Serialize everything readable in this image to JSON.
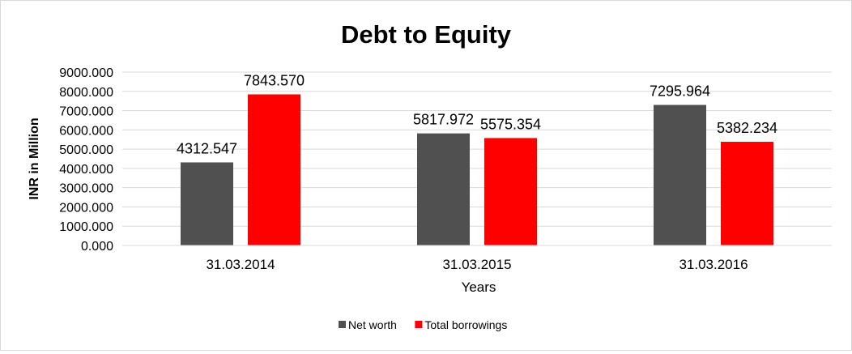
{
  "chart_data": {
    "type": "bar",
    "title": "Debt to Equity",
    "xlabel": "Years",
    "ylabel": "INR in Million",
    "categories": [
      "31.03.2014",
      "31.03.2015",
      "31.03.2016"
    ],
    "series": [
      {
        "name": "Net worth",
        "color": "#505050",
        "values": [
          4312.547,
          5817.972,
          7295.964
        ]
      },
      {
        "name": "Total borrowings",
        "color": "#ff0000",
        "values": [
          7843.57,
          5575.354,
          5382.234
        ]
      }
    ],
    "data_labels": [
      [
        "4312.547",
        "5817.972",
        "7295.964"
      ],
      [
        "7843.570",
        "5575.354",
        "5382.234"
      ]
    ],
    "ylim": [
      0,
      9000
    ],
    "yticks": [
      "0.000",
      "1000.000",
      "2000.000",
      "3000.000",
      "4000.000",
      "5000.000",
      "6000.000",
      "7000.000",
      "8000.000",
      "9000.000"
    ],
    "grid": true,
    "legend_position": "bottom"
  }
}
